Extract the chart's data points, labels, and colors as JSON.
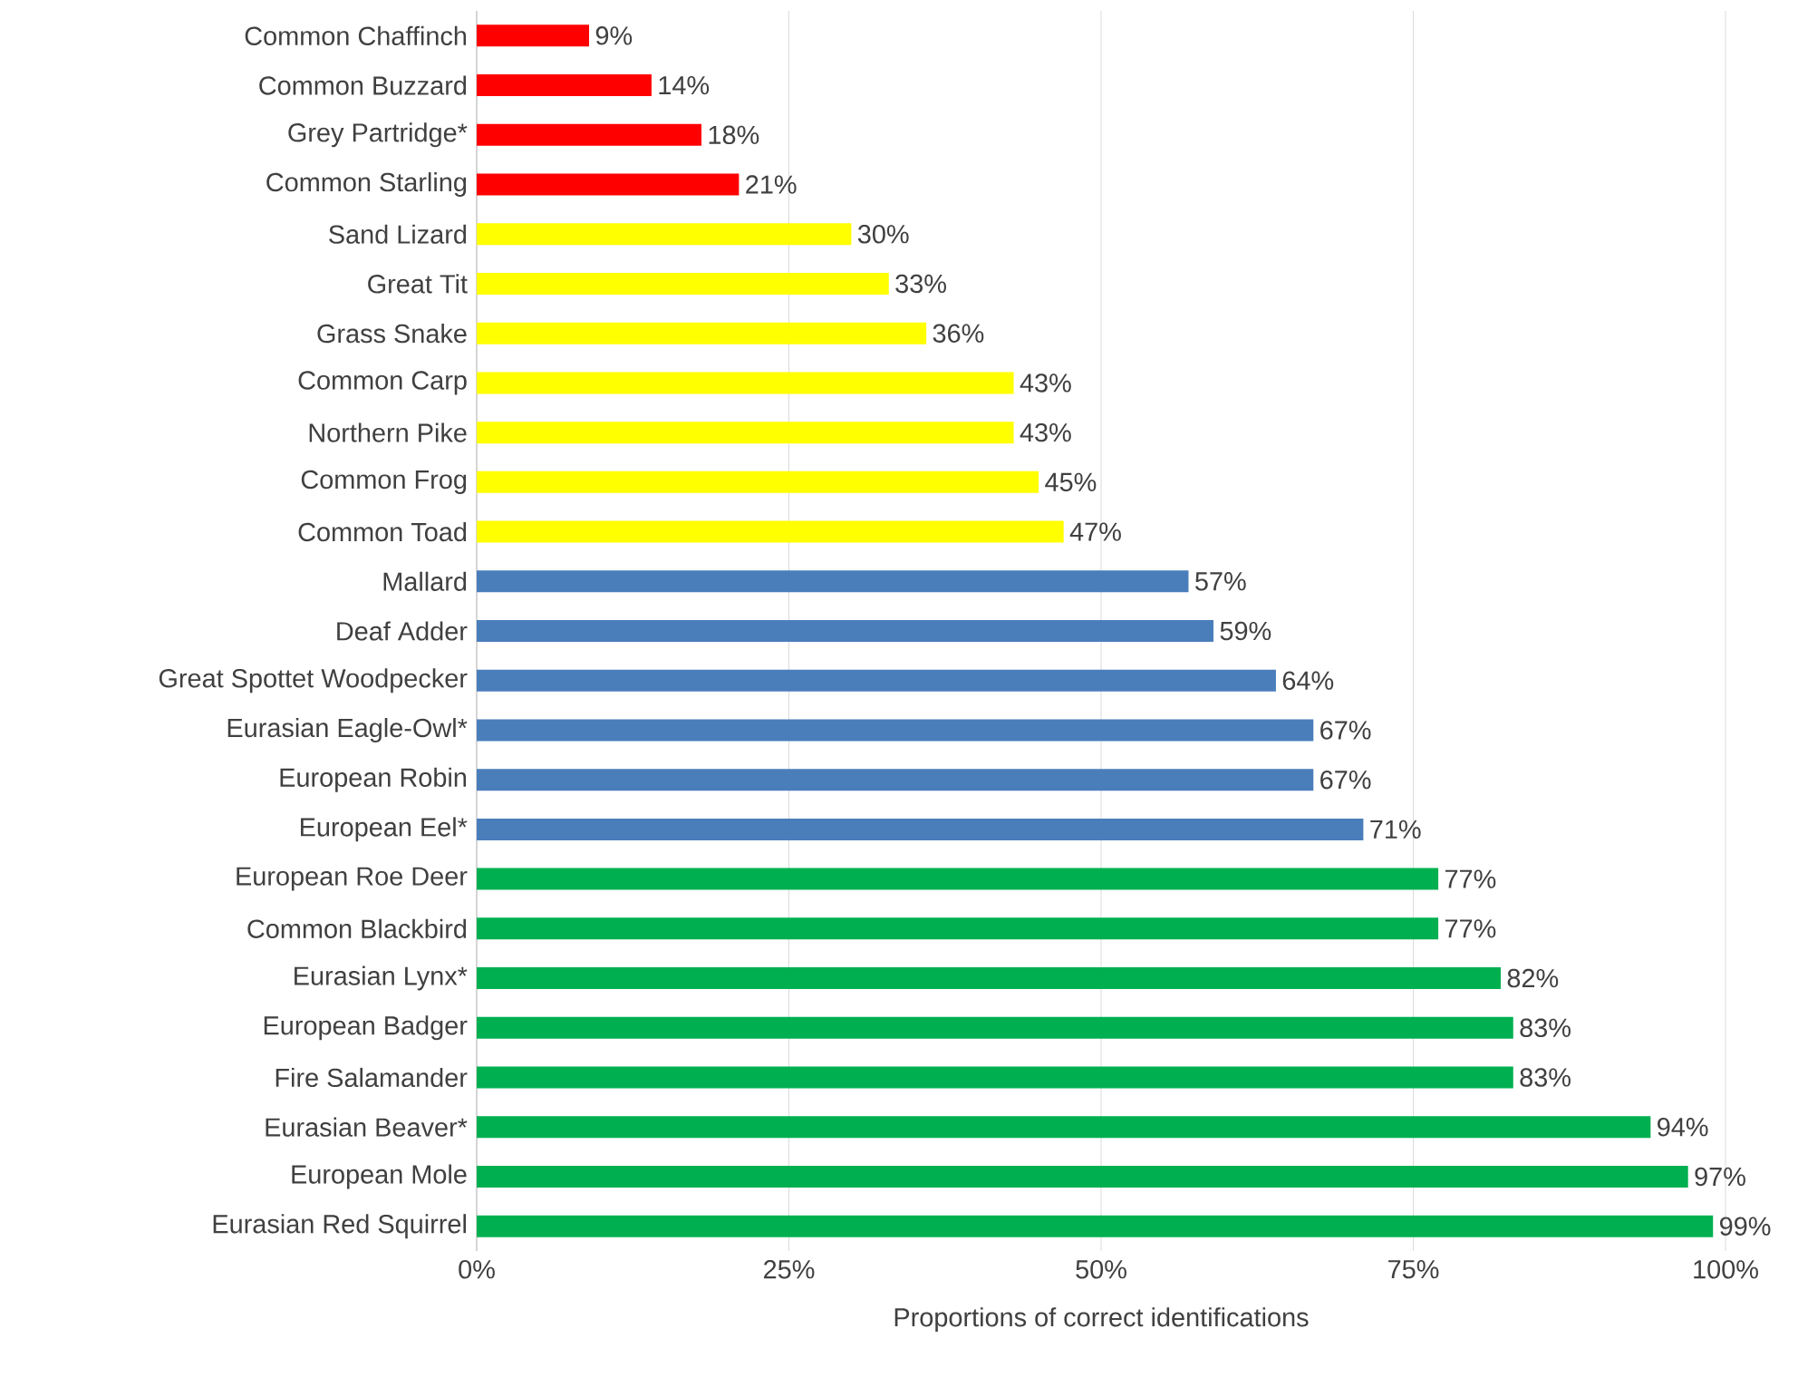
{
  "chart_data": {
    "type": "bar",
    "orientation": "horizontal",
    "xlabel": "Proportions of correct identifications",
    "categories": [
      "Common Chaffinch",
      "Common Buzzard",
      "Grey Partridge*",
      "Common Starling",
      "Sand Lizard",
      "Great Tit",
      "Grass Snake",
      "Common Carp",
      "Northern Pike",
      "Common Frog",
      "Common Toad",
      "Mallard",
      "Deaf Adder",
      "Great Spottet Woodpecker",
      "Eurasian Eagle-Owl*",
      "European Robin",
      "European Eel*",
      "European Roe Deer",
      "Common Blackbird",
      "Eurasian Lynx*",
      "European Badger",
      "Fire Salamander",
      "Eurasian Beaver*",
      "European Mole",
      "Eurasian Red Squirrel"
    ],
    "values": [
      9,
      14,
      18,
      21,
      30,
      33,
      36,
      43,
      43,
      45,
      47,
      57,
      59,
      64,
      67,
      67,
      71,
      77,
      77,
      82,
      83,
      83,
      94,
      97,
      99
    ],
    "value_labels": [
      "9%",
      "14%",
      "18%",
      "21%",
      "30%",
      "33%",
      "36%",
      "43%",
      "43%",
      "45%",
      "47%",
      "57%",
      "59%",
      "64%",
      "67%",
      "67%",
      "71%",
      "77%",
      "77%",
      "82%",
      "83%",
      "83%",
      "94%",
      "97%",
      "99%"
    ],
    "colors": [
      "#ff0000",
      "#ff0000",
      "#ff0000",
      "#ff0000",
      "#ffff00",
      "#ffff00",
      "#ffff00",
      "#ffff00",
      "#ffff00",
      "#ffff00",
      "#ffff00",
      "#4a7ebb",
      "#4a7ebb",
      "#4a7ebb",
      "#4a7ebb",
      "#4a7ebb",
      "#4a7ebb",
      "#00b050",
      "#00b050",
      "#00b050",
      "#00b050",
      "#00b050",
      "#00b050",
      "#00b050",
      "#00b050"
    ],
    "xlim": [
      0,
      100
    ],
    "xticks": [
      {
        "value": 0,
        "label": "0%"
      },
      {
        "value": 25,
        "label": "25%"
      },
      {
        "value": 50,
        "label": "50%"
      },
      {
        "value": 75,
        "label": "75%"
      },
      {
        "value": 100,
        "label": "100%"
      }
    ],
    "grid": "x"
  }
}
